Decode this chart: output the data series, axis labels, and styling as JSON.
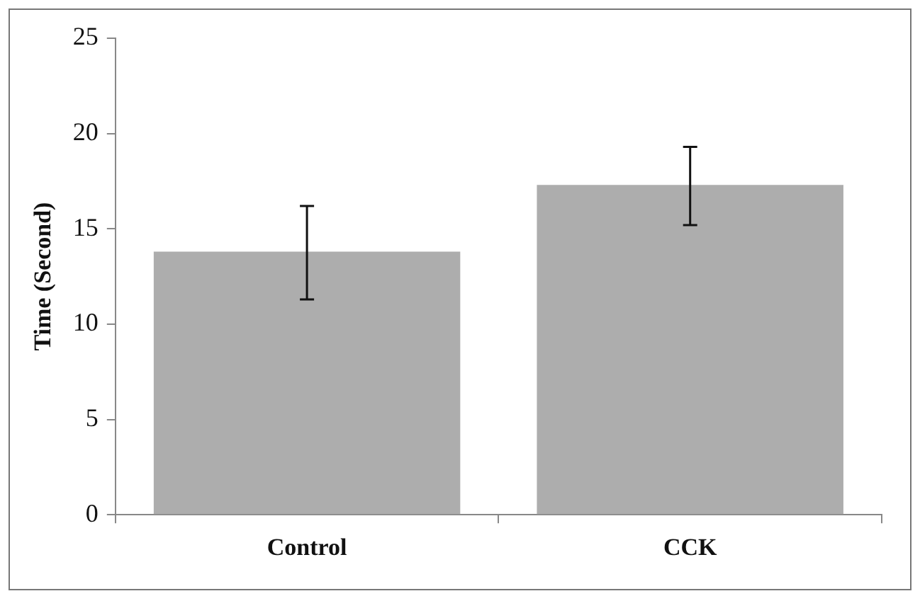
{
  "chart_data": {
    "type": "bar",
    "ylabel": "Time (Second)",
    "categories": [
      "Control",
      "CCK"
    ],
    "values": [
      13.8,
      17.3
    ],
    "errors": [
      [
        11.3,
        16.2
      ],
      [
        15.2,
        19.3
      ]
    ],
    "color": "#adadad",
    "ylim": [
      0,
      25
    ],
    "yticks": [
      0,
      5,
      10,
      15,
      20,
      25
    ],
    "grid": false
  }
}
